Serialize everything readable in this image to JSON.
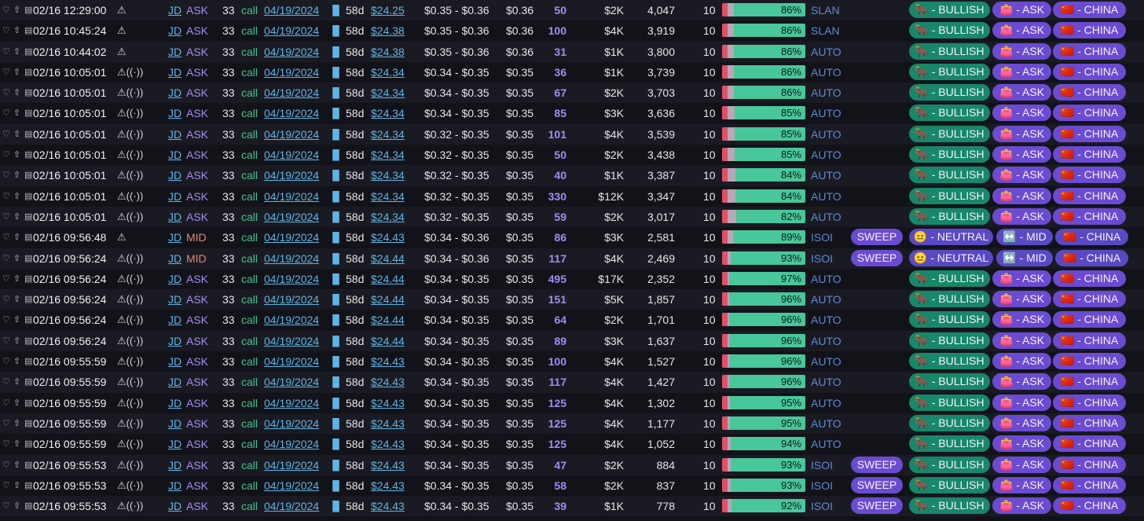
{
  "colors": {
    "bullish": "#18876a",
    "tag": "#6a4bd2",
    "bar_green": "#48c79a",
    "bar_red": "#e0506a"
  },
  "icons": {
    "heart": "♡",
    "share": "⇧",
    "doc": "▤",
    "warn": "⚠",
    "radio": "((·))",
    "bars": "▐▌"
  },
  "rows": [
    {
      "time": "02/16 12:29:00",
      "alert": "⚠",
      "ticker": "JD",
      "side": "ASK",
      "strike": "33",
      "type": "call",
      "exp": "04/19/2024",
      "dte": "58d",
      "spot": "$24.25",
      "bidask": "$0.35 - $0.36",
      "price": "$0.36",
      "size": "50",
      "prem": "$2K",
      "oi": "4,047",
      "ten": "10",
      "pct": "86%",
      "pct_val": 86,
      "src": "SLAN",
      "sweep": "",
      "sent": "🐂 - BULLISH",
      "side_tag": "👛 - ASK",
      "sector": "🇨🇳 - CHINA"
    },
    {
      "time": "02/16 10:45:24",
      "alert": "⚠",
      "ticker": "JD",
      "side": "ASK",
      "strike": "33",
      "type": "call",
      "exp": "04/19/2024",
      "dte": "58d",
      "spot": "$24.38",
      "bidask": "$0.35 - $0.36",
      "price": "$0.36",
      "size": "100",
      "prem": "$4K",
      "oi": "3,919",
      "ten": "10",
      "pct": "86%",
      "pct_val": 86,
      "src": "SLAN",
      "sweep": "",
      "sent": "🐂 - BULLISH",
      "side_tag": "👛 - ASK",
      "sector": "🇨🇳 - CHINA"
    },
    {
      "time": "02/16 10:44:02",
      "alert": "⚠",
      "ticker": "JD",
      "side": "ASK",
      "strike": "33",
      "type": "call",
      "exp": "04/19/2024",
      "dte": "58d",
      "spot": "$24.38",
      "bidask": "$0.35 - $0.36",
      "price": "$0.36",
      "size": "31",
      "prem": "$1K",
      "oi": "3,800",
      "ten": "10",
      "pct": "86%",
      "pct_val": 86,
      "src": "AUTO",
      "sweep": "",
      "sent": "🐂 - BULLISH",
      "side_tag": "👛 - ASK",
      "sector": "🇨🇳 - CHINA"
    },
    {
      "time": "02/16 10:05:01",
      "alert": "⚠((·))",
      "ticker": "JD",
      "side": "ASK",
      "strike": "33",
      "type": "call",
      "exp": "04/19/2024",
      "dte": "58d",
      "spot": "$24.34",
      "bidask": "$0.34 - $0.35",
      "price": "$0.35",
      "size": "36",
      "prem": "$1K",
      "oi": "3,739",
      "ten": "10",
      "pct": "86%",
      "pct_val": 86,
      "src": "AUTO",
      "sweep": "",
      "sent": "🐂 - BULLISH",
      "side_tag": "👛 - ASK",
      "sector": "🇨🇳 - CHINA"
    },
    {
      "time": "02/16 10:05:01",
      "alert": "⚠((·))",
      "ticker": "JD",
      "side": "ASK",
      "strike": "33",
      "type": "call",
      "exp": "04/19/2024",
      "dte": "58d",
      "spot": "$24.34",
      "bidask": "$0.34 - $0.35",
      "price": "$0.35",
      "size": "67",
      "prem": "$2K",
      "oi": "3,703",
      "ten": "10",
      "pct": "86%",
      "pct_val": 86,
      "src": "AUTO",
      "sweep": "",
      "sent": "🐂 - BULLISH",
      "side_tag": "👛 - ASK",
      "sector": "🇨🇳 - CHINA"
    },
    {
      "time": "02/16 10:05:01",
      "alert": "⚠((·))",
      "ticker": "JD",
      "side": "ASK",
      "strike": "33",
      "type": "call",
      "exp": "04/19/2024",
      "dte": "58d",
      "spot": "$24.34",
      "bidask": "$0.34 - $0.35",
      "price": "$0.35",
      "size": "85",
      "prem": "$3K",
      "oi": "3,636",
      "ten": "10",
      "pct": "85%",
      "pct_val": 85,
      "src": "AUTO",
      "sweep": "",
      "sent": "🐂 - BULLISH",
      "side_tag": "👛 - ASK",
      "sector": "🇨🇳 - CHINA"
    },
    {
      "time": "02/16 10:05:01",
      "alert": "⚠((·))",
      "ticker": "JD",
      "side": "ASK",
      "strike": "33",
      "type": "call",
      "exp": "04/19/2024",
      "dte": "58d",
      "spot": "$24.34",
      "bidask": "$0.32 - $0.35",
      "price": "$0.35",
      "size": "101",
      "prem": "$4K",
      "oi": "3,539",
      "ten": "10",
      "pct": "85%",
      "pct_val": 85,
      "src": "AUTO",
      "sweep": "",
      "sent": "🐂 - BULLISH",
      "side_tag": "👛 - ASK",
      "sector": "🇨🇳 - CHINA"
    },
    {
      "time": "02/16 10:05:01",
      "alert": "⚠((·))",
      "ticker": "JD",
      "side": "ASK",
      "strike": "33",
      "type": "call",
      "exp": "04/19/2024",
      "dte": "58d",
      "spot": "$24.34",
      "bidask": "$0.32 - $0.35",
      "price": "$0.35",
      "size": "50",
      "prem": "$2K",
      "oi": "3,438",
      "ten": "10",
      "pct": "85%",
      "pct_val": 85,
      "src": "AUTO",
      "sweep": "",
      "sent": "🐂 - BULLISH",
      "side_tag": "👛 - ASK",
      "sector": "🇨🇳 - CHINA"
    },
    {
      "time": "02/16 10:05:01",
      "alert": "⚠((·))",
      "ticker": "JD",
      "side": "ASK",
      "strike": "33",
      "type": "call",
      "exp": "04/19/2024",
      "dte": "58d",
      "spot": "$24.34",
      "bidask": "$0.32 - $0.35",
      "price": "$0.35",
      "size": "40",
      "prem": "$1K",
      "oi": "3,387",
      "ten": "10",
      "pct": "84%",
      "pct_val": 84,
      "src": "AUTO",
      "sweep": "",
      "sent": "🐂 - BULLISH",
      "side_tag": "👛 - ASK",
      "sector": "🇨🇳 - CHINA"
    },
    {
      "time": "02/16 10:05:01",
      "alert": "⚠((·))",
      "ticker": "JD",
      "side": "ASK",
      "strike": "33",
      "type": "call",
      "exp": "04/19/2024",
      "dte": "58d",
      "spot": "$24.34",
      "bidask": "$0.32 - $0.35",
      "price": "$0.35",
      "size": "330",
      "prem": "$12K",
      "oi": "3,347",
      "ten": "10",
      "pct": "84%",
      "pct_val": 84,
      "src": "AUTO",
      "sweep": "",
      "sent": "🐂 - BULLISH",
      "side_tag": "👛 - ASK",
      "sector": "🇨🇳 - CHINA"
    },
    {
      "time": "02/16 10:05:01",
      "alert": "⚠((·))",
      "ticker": "JD",
      "side": "ASK",
      "strike": "33",
      "type": "call",
      "exp": "04/19/2024",
      "dte": "58d",
      "spot": "$24.34",
      "bidask": "$0.32 - $0.35",
      "price": "$0.35",
      "size": "59",
      "prem": "$2K",
      "oi": "3,017",
      "ten": "10",
      "pct": "82%",
      "pct_val": 82,
      "src": "AUTO",
      "sweep": "",
      "sent": "🐂 - BULLISH",
      "side_tag": "👛 - ASK",
      "sector": "🇨🇳 - CHINA"
    },
    {
      "time": "02/16 09:56:48",
      "alert": "⚠",
      "ticker": "JD",
      "side": "MID",
      "strike": "33",
      "type": "call",
      "exp": "04/19/2024",
      "dte": "58d",
      "spot": "$24.43",
      "bidask": "$0.34 - $0.36",
      "price": "$0.35",
      "size": "86",
      "prem": "$3K",
      "oi": "2,581",
      "ten": "10",
      "pct": "89%",
      "pct_val": 89,
      "src": "ISOI",
      "sweep": "SWEEP",
      "sent": "😐 - NEUTRAL",
      "side_tag": "↔️ - MID",
      "sector": "🇨🇳 - CHINA"
    },
    {
      "time": "02/16 09:56:24",
      "alert": "⚠((·))",
      "ticker": "JD",
      "side": "MID",
      "strike": "33",
      "type": "call",
      "exp": "04/19/2024",
      "dte": "58d",
      "spot": "$24.44",
      "bidask": "$0.34 - $0.36",
      "price": "$0.35",
      "size": "117",
      "prem": "$4K",
      "oi": "2,469",
      "ten": "10",
      "pct": "93%",
      "pct_val": 93,
      "src": "ISOI",
      "sweep": "SWEEP",
      "sent": "😐 - NEUTRAL",
      "side_tag": "↔️ - MID",
      "sector": "🇨🇳 - CHINA"
    },
    {
      "time": "02/16 09:56:24",
      "alert": "⚠((·))",
      "ticker": "JD",
      "side": "ASK",
      "strike": "33",
      "type": "call",
      "exp": "04/19/2024",
      "dte": "58d",
      "spot": "$24.44",
      "bidask": "$0.34 - $0.35",
      "price": "$0.35",
      "size": "495",
      "prem": "$17K",
      "oi": "2,352",
      "ten": "10",
      "pct": "97%",
      "pct_val": 97,
      "src": "AUTO",
      "sweep": "",
      "sent": "🐂 - BULLISH",
      "side_tag": "👛 - ASK",
      "sector": "🇨🇳 - CHINA"
    },
    {
      "time": "02/16 09:56:24",
      "alert": "⚠((·))",
      "ticker": "JD",
      "side": "ASK",
      "strike": "33",
      "type": "call",
      "exp": "04/19/2024",
      "dte": "58d",
      "spot": "$24.44",
      "bidask": "$0.34 - $0.35",
      "price": "$0.35",
      "size": "151",
      "prem": "$5K",
      "oi": "1,857",
      "ten": "10",
      "pct": "96%",
      "pct_val": 96,
      "src": "AUTO",
      "sweep": "",
      "sent": "🐂 - BULLISH",
      "side_tag": "👛 - ASK",
      "sector": "🇨🇳 - CHINA"
    },
    {
      "time": "02/16 09:56:24",
      "alert": "⚠((·))",
      "ticker": "JD",
      "side": "ASK",
      "strike": "33",
      "type": "call",
      "exp": "04/19/2024",
      "dte": "58d",
      "spot": "$24.44",
      "bidask": "$0.34 - $0.35",
      "price": "$0.35",
      "size": "64",
      "prem": "$2K",
      "oi": "1,701",
      "ten": "10",
      "pct": "96%",
      "pct_val": 96,
      "src": "AUTO",
      "sweep": "",
      "sent": "🐂 - BULLISH",
      "side_tag": "👛 - ASK",
      "sector": "🇨🇳 - CHINA"
    },
    {
      "time": "02/16 09:56:24",
      "alert": "⚠((·))",
      "ticker": "JD",
      "side": "ASK",
      "strike": "33",
      "type": "call",
      "exp": "04/19/2024",
      "dte": "58d",
      "spot": "$24.44",
      "bidask": "$0.34 - $0.35",
      "price": "$0.35",
      "size": "89",
      "prem": "$3K",
      "oi": "1,637",
      "ten": "10",
      "pct": "96%",
      "pct_val": 96,
      "src": "AUTO",
      "sweep": "",
      "sent": "🐂 - BULLISH",
      "side_tag": "👛 - ASK",
      "sector": "🇨🇳 - CHINA"
    },
    {
      "time": "02/16 09:55:59",
      "alert": "⚠((·))",
      "ticker": "JD",
      "side": "ASK",
      "strike": "33",
      "type": "call",
      "exp": "04/19/2024",
      "dte": "58d",
      "spot": "$24.43",
      "bidask": "$0.34 - $0.35",
      "price": "$0.35",
      "size": "100",
      "prem": "$4K",
      "oi": "1,527",
      "ten": "10",
      "pct": "96%",
      "pct_val": 96,
      "src": "AUTO",
      "sweep": "",
      "sent": "🐂 - BULLISH",
      "side_tag": "👛 - ASK",
      "sector": "🇨🇳 - CHINA"
    },
    {
      "time": "02/16 09:55:59",
      "alert": "⚠((·))",
      "ticker": "JD",
      "side": "ASK",
      "strike": "33",
      "type": "call",
      "exp": "04/19/2024",
      "dte": "58d",
      "spot": "$24.43",
      "bidask": "$0.34 - $0.35",
      "price": "$0.35",
      "size": "117",
      "prem": "$4K",
      "oi": "1,427",
      "ten": "10",
      "pct": "96%",
      "pct_val": 96,
      "src": "AUTO",
      "sweep": "",
      "sent": "🐂 - BULLISH",
      "side_tag": "👛 - ASK",
      "sector": "🇨🇳 - CHINA"
    },
    {
      "time": "02/16 09:55:59",
      "alert": "⚠((·))",
      "ticker": "JD",
      "side": "ASK",
      "strike": "33",
      "type": "call",
      "exp": "04/19/2024",
      "dte": "58d",
      "spot": "$24.43",
      "bidask": "$0.34 - $0.35",
      "price": "$0.35",
      "size": "125",
      "prem": "$4K",
      "oi": "1,302",
      "ten": "10",
      "pct": "95%",
      "pct_val": 95,
      "src": "AUTO",
      "sweep": "",
      "sent": "🐂 - BULLISH",
      "side_tag": "👛 - ASK",
      "sector": "🇨🇳 - CHINA"
    },
    {
      "time": "02/16 09:55:59",
      "alert": "⚠((·))",
      "ticker": "JD",
      "side": "ASK",
      "strike": "33",
      "type": "call",
      "exp": "04/19/2024",
      "dte": "58d",
      "spot": "$24.43",
      "bidask": "$0.34 - $0.35",
      "price": "$0.35",
      "size": "125",
      "prem": "$4K",
      "oi": "1,177",
      "ten": "10",
      "pct": "95%",
      "pct_val": 95,
      "src": "AUTO",
      "sweep": "",
      "sent": "🐂 - BULLISH",
      "side_tag": "👛 - ASK",
      "sector": "🇨🇳 - CHINA"
    },
    {
      "time": "02/16 09:55:59",
      "alert": "⚠((·))",
      "ticker": "JD",
      "side": "ASK",
      "strike": "33",
      "type": "call",
      "exp": "04/19/2024",
      "dte": "58d",
      "spot": "$24.43",
      "bidask": "$0.34 - $0.35",
      "price": "$0.35",
      "size": "125",
      "prem": "$4K",
      "oi": "1,052",
      "ten": "10",
      "pct": "94%",
      "pct_val": 94,
      "src": "AUTO",
      "sweep": "",
      "sent": "🐂 - BULLISH",
      "side_tag": "👛 - ASK",
      "sector": "🇨🇳 - CHINA"
    },
    {
      "time": "02/16 09:55:53",
      "alert": "⚠((·))",
      "ticker": "JD",
      "side": "ASK",
      "strike": "33",
      "type": "call",
      "exp": "04/19/2024",
      "dte": "58d",
      "spot": "$24.43",
      "bidask": "$0.34 - $0.35",
      "price": "$0.35",
      "size": "47",
      "prem": "$2K",
      "oi": "884",
      "ten": "10",
      "pct": "93%",
      "pct_val": 93,
      "src": "ISOI",
      "sweep": "SWEEP",
      "sent": "🐂 - BULLISH",
      "side_tag": "👛 - ASK",
      "sector": "🇨🇳 - CHINA"
    },
    {
      "time": "02/16 09:55:53",
      "alert": "⚠((·))",
      "ticker": "JD",
      "side": "ASK",
      "strike": "33",
      "type": "call",
      "exp": "04/19/2024",
      "dte": "58d",
      "spot": "$24.43",
      "bidask": "$0.34 - $0.35",
      "price": "$0.35",
      "size": "58",
      "prem": "$2K",
      "oi": "837",
      "ten": "10",
      "pct": "93%",
      "pct_val": 93,
      "src": "ISOI",
      "sweep": "SWEEP",
      "sent": "🐂 - BULLISH",
      "side_tag": "👛 - ASK",
      "sector": "🇨🇳 - CHINA"
    },
    {
      "time": "02/16 09:55:53",
      "alert": "⚠((·))",
      "ticker": "JD",
      "side": "ASK",
      "strike": "33",
      "type": "call",
      "exp": "04/19/2024",
      "dte": "58d",
      "spot": "$24.43",
      "bidask": "$0.34 - $0.35",
      "price": "$0.35",
      "size": "39",
      "prem": "$1K",
      "oi": "778",
      "ten": "10",
      "pct": "92%",
      "pct_val": 92,
      "src": "ISOI",
      "sweep": "SWEEP",
      "sent": "🐂 - BULLISH",
      "side_tag": "👛 - ASK",
      "sector": "🇨🇳 - CHINA"
    }
  ]
}
